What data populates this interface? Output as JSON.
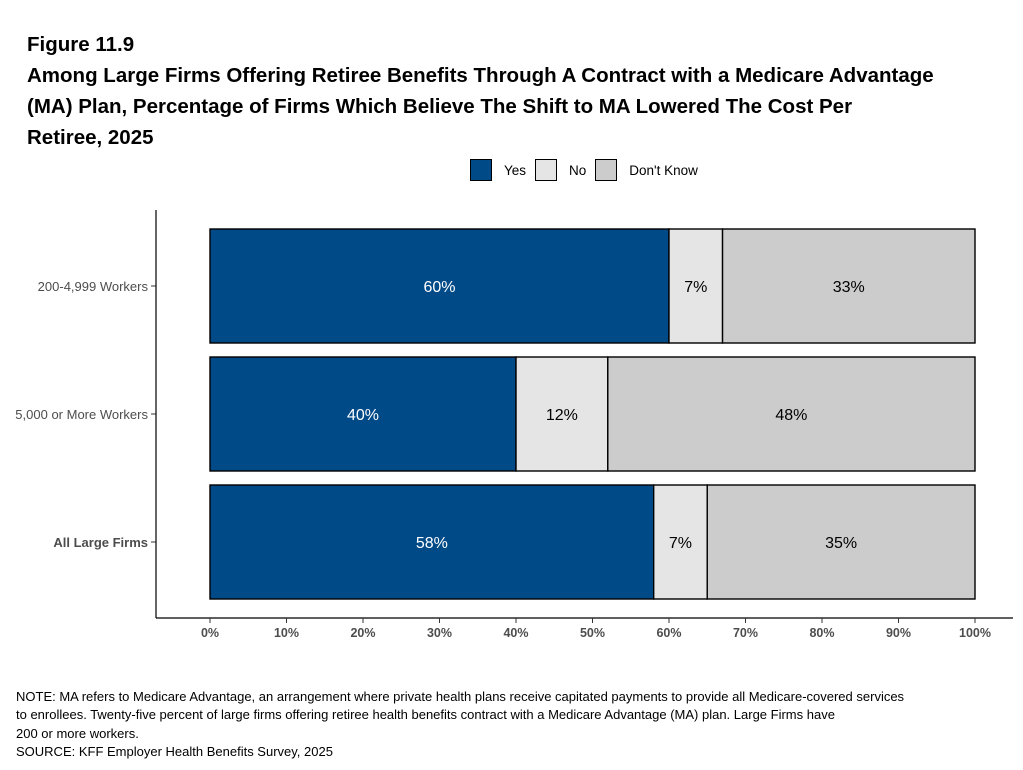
{
  "figure": {
    "label": "Figure 11.9",
    "title_lines": [
      "Among Large Firms Offering Retiree Benefits Through A Contract with a Medicare Advantage",
      "(MA) Plan, Percentage of Firms Which Believe The Shift to MA Lowered The Cost Per",
      "Retiree, 2025"
    ]
  },
  "chart_data": {
    "type": "bar",
    "orientation": "horizontal",
    "stacked": true,
    "categories": [
      "200-4,999 Workers",
      "5,000 or More Workers",
      "All Large Firms"
    ],
    "bold_categories": [
      "All Large Firms"
    ],
    "series": [
      {
        "name": "Yes",
        "color": "#004a87",
        "label_color": "#ffffff",
        "values": [
          60,
          40,
          58
        ],
        "labels": [
          "60%",
          "40%",
          "58%"
        ]
      },
      {
        "name": "No",
        "color": "#e5e5e5",
        "label_color": "#000000",
        "values": [
          7,
          12,
          7
        ],
        "labels": [
          "7%",
          "12%",
          "7%"
        ]
      },
      {
        "name": "Don't Know",
        "color": "#cccccc",
        "label_color": "#000000",
        "values": [
          33,
          48,
          35
        ],
        "labels": [
          "33%",
          "48%",
          "35%"
        ]
      }
    ],
    "xlim": [
      0,
      100
    ],
    "xticks": [
      "0%",
      "10%",
      "20%",
      "30%",
      "40%",
      "50%",
      "60%",
      "70%",
      "80%",
      "90%",
      "100%"
    ],
    "legend_position": "top",
    "grid": false
  },
  "notes": {
    "lines": [
      "NOTE: MA refers to Medicare Advantage, an arrangement where private health plans receive capitated payments to provide all Medicare-covered services",
      "to enrollees.  Twenty-five percent of large firms offering retiree health benefits contract with a Medicare Advantage (MA) plan.  Large Firms have",
      "200 or more workers.",
      "SOURCE: KFF Employer Health Benefits Survey, 2025"
    ]
  }
}
